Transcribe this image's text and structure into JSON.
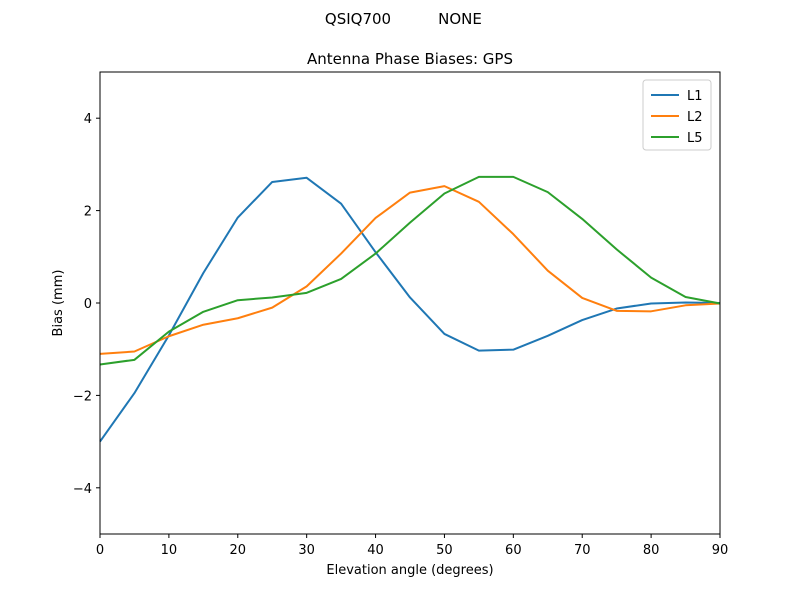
{
  "suptitle": {
    "antenna": "QSIQ700",
    "radome": "NONE"
  },
  "chart_data": {
    "type": "line",
    "title": "Antenna Phase Biases: GPS",
    "xlabel": "Elevation angle (degrees)",
    "ylabel": "Bias (mm)",
    "xlim": [
      0,
      90
    ],
    "ylim": [
      -5,
      5
    ],
    "xticks": [
      0,
      10,
      20,
      30,
      40,
      50,
      60,
      70,
      80,
      90
    ],
    "yticks": [
      -4,
      -2,
      0,
      2,
      4
    ],
    "ytick_labels": [
      "−4",
      "−2",
      "0",
      "2",
      "4"
    ],
    "grid": false,
    "legend_position": "top-right",
    "x": [
      0,
      5,
      10,
      15,
      20,
      25,
      30,
      35,
      40,
      45,
      50,
      55,
      60,
      65,
      70,
      75,
      80,
      85,
      90
    ],
    "series": [
      {
        "name": "L1",
        "color": "#1f77b4",
        "values": [
          -3.0,
          -1.95,
          -0.7,
          0.65,
          1.85,
          2.62,
          2.71,
          2.15,
          1.1,
          0.12,
          -0.67,
          -1.03,
          -1.01,
          -0.71,
          -0.37,
          -0.12,
          -0.01,
          0.01,
          0.0
        ]
      },
      {
        "name": "L2",
        "color": "#ff7f0e",
        "values": [
          -1.1,
          -1.05,
          -0.72,
          -0.47,
          -0.33,
          -0.1,
          0.36,
          1.07,
          1.84,
          2.39,
          2.53,
          2.19,
          1.49,
          0.7,
          0.11,
          -0.17,
          -0.18,
          -0.05,
          -0.01
        ]
      },
      {
        "name": "L5",
        "color": "#2ca02c",
        "values": [
          -1.33,
          -1.23,
          -0.62,
          -0.19,
          0.06,
          0.12,
          0.22,
          0.52,
          1.07,
          1.74,
          2.37,
          2.73,
          2.73,
          2.4,
          1.82,
          1.16,
          0.55,
          0.13,
          -0.01
        ]
      }
    ]
  }
}
